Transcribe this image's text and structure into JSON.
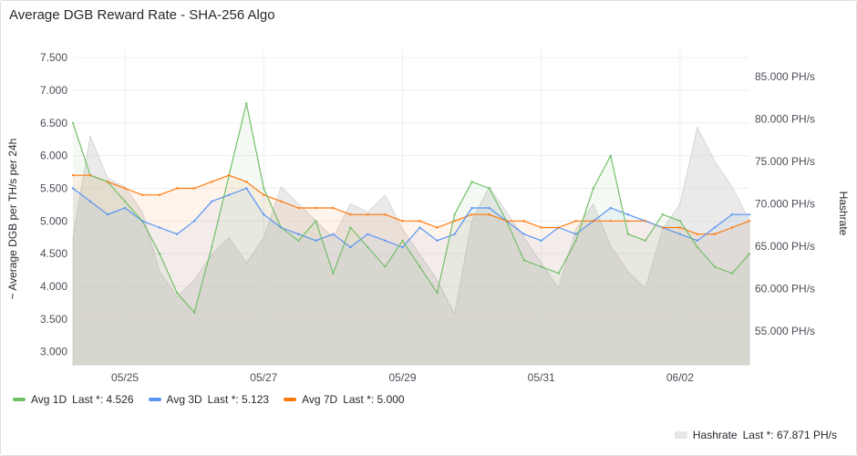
{
  "title": "Average DGB Reward Rate - SHA-256 Algo",
  "chart_data": {
    "type": "line",
    "x": [
      "05/24 06:00",
      "05/24 12:00",
      "05/24 18:00",
      "05/25 00:00",
      "05/25 06:00",
      "05/25 12:00",
      "05/25 18:00",
      "05/26 00:00",
      "05/26 06:00",
      "05/26 12:00",
      "05/26 18:00",
      "05/27 00:00",
      "05/27 06:00",
      "05/27 12:00",
      "05/27 18:00",
      "05/28 00:00",
      "05/28 06:00",
      "05/28 12:00",
      "05/28 18:00",
      "05/29 00:00",
      "05/29 06:00",
      "05/29 12:00",
      "05/29 18:00",
      "05/30 00:00",
      "05/30 06:00",
      "05/30 12:00",
      "05/30 18:00",
      "05/31 00:00",
      "05/31 06:00",
      "05/31 12:00",
      "05/31 18:00",
      "06/01 00:00",
      "06/01 06:00",
      "06/01 12:00",
      "06/01 18:00",
      "06/02 00:00",
      "06/02 06:00",
      "06/02 12:00",
      "06/02 18:00",
      "06/03 00:00"
    ],
    "xlim": [
      "05/24 06:00",
      "06/03 00:00"
    ],
    "x_ticks": [
      "05/25",
      "05/27",
      "05/29",
      "05/31",
      "06/02"
    ],
    "ylabel": "~ Average DGB per TH/s per 24h",
    "ylim": [
      2.8,
      7.6
    ],
    "y_ticks": [
      "3.000",
      "3.500",
      "4.000",
      "4.500",
      "5.000",
      "5.500",
      "6.000",
      "6.500",
      "7.000",
      "7.500"
    ],
    "y2label": "Hashrate",
    "y2lim": [
      51000,
      88000
    ],
    "y2_unit": "PH/s",
    "y2_ticks": [
      "55.000 PH/s",
      "60.000 PH/s",
      "65.000 PH/s",
      "70.000 PH/s",
      "75.000 PH/s",
      "80.000 PH/s",
      "85.000 PH/s"
    ],
    "series": [
      {
        "name": "Avg 1D",
        "axis": "left",
        "color": "#73bf69",
        "last": "4.526",
        "values": [
          6.5,
          5.7,
          5.6,
          5.3,
          5.0,
          4.5,
          3.9,
          3.6,
          4.6,
          5.7,
          6.8,
          5.5,
          4.9,
          4.7,
          5.0,
          4.2,
          4.9,
          4.6,
          4.3,
          4.7,
          4.3,
          3.9,
          5.1,
          5.6,
          5.5,
          5.0,
          4.4,
          4.3,
          4.2,
          4.7,
          5.5,
          6.0,
          4.8,
          4.7,
          5.1,
          5.0,
          4.6,
          4.3,
          4.2,
          4.5
        ]
      },
      {
        "name": "Avg 3D",
        "axis": "left",
        "color": "#5794f2",
        "last": "5.123",
        "values": [
          5.5,
          5.3,
          5.1,
          5.2,
          5.0,
          4.9,
          4.8,
          5.0,
          5.3,
          5.4,
          5.5,
          5.1,
          4.9,
          4.8,
          4.7,
          4.8,
          4.6,
          4.8,
          4.7,
          4.6,
          4.9,
          4.7,
          4.8,
          5.2,
          5.2,
          5.0,
          4.8,
          4.7,
          4.9,
          4.8,
          5.0,
          5.2,
          5.1,
          5.0,
          4.9,
          4.8,
          4.7,
          4.9,
          5.1,
          5.1
        ]
      },
      {
        "name": "Avg 7D",
        "axis": "left",
        "color": "#ff780a",
        "last": "5.000",
        "values": [
          5.7,
          5.7,
          5.6,
          5.5,
          5.4,
          5.4,
          5.5,
          5.5,
          5.6,
          5.7,
          5.6,
          5.4,
          5.3,
          5.2,
          5.2,
          5.2,
          5.1,
          5.1,
          5.1,
          5.0,
          5.0,
          4.9,
          5.0,
          5.1,
          5.1,
          5.0,
          5.0,
          4.9,
          4.9,
          5.0,
          5.0,
          5.0,
          5.0,
          5.0,
          4.9,
          4.9,
          4.8,
          4.8,
          4.9,
          5.0
        ]
      },
      {
        "name": "Hashrate",
        "axis": "right",
        "color": "#e6e6e6",
        "last": "67.871 PH/s",
        "values": [
          66000,
          78000,
          73000,
          72000,
          69000,
          62000,
          59000,
          61000,
          64000,
          66000,
          63000,
          66000,
          72000,
          70000,
          68000,
          66000,
          70000,
          69000,
          71000,
          67000,
          64000,
          61000,
          57000,
          68000,
          72000,
          69000,
          66000,
          63000,
          60000,
          67000,
          70000,
          65000,
          62000,
          60000,
          67000,
          70000,
          79000,
          75000,
          72000,
          68000
        ]
      }
    ]
  },
  "legend": [
    {
      "name": "Avg 1D",
      "last_label": "Last *: 4.526",
      "color": "#73bf69"
    },
    {
      "name": "Avg 3D",
      "last_label": "Last *: 5.123",
      "color": "#5794f2"
    },
    {
      "name": "Avg 7D",
      "last_label": "Last *: 5.000",
      "color": "#ff780a"
    }
  ],
  "legend2": {
    "name": "Hashrate",
    "last_label": "Last *: 67.871 PH/s",
    "color": "#e6e6e6"
  }
}
